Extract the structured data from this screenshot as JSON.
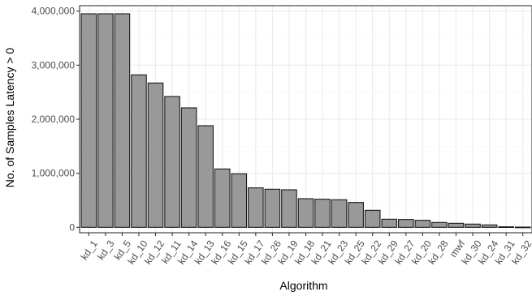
{
  "chart_data": {
    "type": "bar",
    "xlabel": "Algorithm",
    "ylabel": "No. of Samples Latency > 0",
    "ylim": [
      -100000,
      4100000
    ],
    "yticks": [
      0,
      1000000,
      2000000,
      3000000,
      4000000
    ],
    "ytick_labels": [
      "0",
      "1,000,000",
      "2,000,000",
      "3,000,000",
      "4,000,000"
    ],
    "grid": true,
    "categories": [
      "kd_1",
      "kd_3",
      "kd_5",
      "kd_10",
      "kd_12",
      "kd_11",
      "kd_14",
      "kd_13",
      "kd_16",
      "kd_15",
      "kd_17",
      "kd_26",
      "kd_19",
      "kd_18",
      "kd_21",
      "kd_23",
      "kd_25",
      "kd_22",
      "kd_29",
      "kd_27",
      "kd_20",
      "kd_28",
      "mwf",
      "kd_30",
      "kd_24",
      "kd_31",
      "kd_32"
    ],
    "values": [
      3950000,
      3950000,
      3950000,
      2820000,
      2670000,
      2420000,
      2210000,
      1880000,
      1080000,
      990000,
      730000,
      705000,
      695000,
      530000,
      520000,
      510000,
      460000,
      315000,
      150000,
      145000,
      130000,
      90000,
      75000,
      60000,
      45000,
      10000,
      5000
    ],
    "colors": {
      "bar_fill": "#999999",
      "bar_stroke": "#1a1a1a",
      "grid_major": "#ebebeb",
      "grid_minor": "#f5f5f5",
      "panel_border": "#333333",
      "text": "#4d4d4d"
    }
  }
}
